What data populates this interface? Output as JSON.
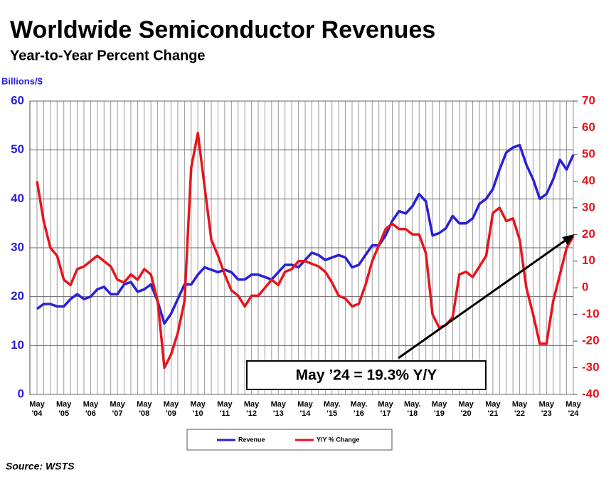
{
  "chart_data": {
    "type": "line",
    "title": "Worldwide Semiconductor Revenues",
    "subtitle": "Year-to-Year Percent Change",
    "y_label": "Billions/$",
    "annotation": "May ’24 = 19.3% Y/Y",
    "source": "Source: WSTS",
    "categories": [
      "May '04",
      null,
      null,
      null,
      "May '05",
      null,
      null,
      null,
      "May '06",
      null,
      null,
      null,
      "May '07",
      null,
      null,
      null,
      "May '08",
      null,
      null,
      null,
      "May '09",
      null,
      null,
      null,
      "May '10",
      null,
      null,
      null,
      "May '11",
      null,
      null,
      null,
      "May '12",
      null,
      null,
      null,
      "May '13",
      null,
      null,
      null,
      "May '14",
      null,
      null,
      null,
      "May. '15",
      null,
      null,
      null,
      "May. '16",
      null,
      null,
      null,
      "May '17",
      null,
      null,
      null,
      "May. '18",
      null,
      null,
      null,
      "May '19",
      null,
      null,
      null,
      "May '20",
      null,
      null,
      null,
      "May '21",
      null,
      null,
      null,
      "May '22",
      null,
      null,
      null,
      "May '23",
      null,
      null,
      null,
      "May '24"
    ],
    "series": [
      {
        "name": "Revenue",
        "color": "#2a1fd8",
        "axis": "y",
        "values": [
          17.5,
          18.5,
          18.5,
          18,
          18,
          19.5,
          20.5,
          19.5,
          20,
          21.5,
          22,
          20.5,
          20.5,
          22.5,
          23,
          21,
          21.5,
          22.5,
          19,
          14.5,
          16.5,
          19.5,
          22.5,
          22.5,
          24.5,
          26,
          25.5,
          25,
          25.5,
          25,
          23.5,
          23.5,
          24.5,
          24.5,
          24,
          23.5,
          25,
          26.5,
          26.5,
          26,
          27.5,
          29,
          28.5,
          27.5,
          28,
          28.5,
          28,
          26,
          26.5,
          28.5,
          30.5,
          30.5,
          32.5,
          35.5,
          37.5,
          37,
          38.5,
          41,
          39.5,
          32.5,
          33,
          34,
          36.5,
          35,
          35,
          36,
          39,
          40,
          42,
          46,
          49.5,
          50.5,
          51,
          47,
          44,
          40,
          41,
          44,
          48,
          46,
          49
        ]
      },
      {
        "name": "Y/Y % Change",
        "color": "#e8141c",
        "axis": "y2",
        "values": [
          40,
          25,
          15,
          12,
          3,
          1,
          7,
          8,
          10,
          12,
          10,
          8,
          3,
          2,
          5,
          3,
          7,
          5,
          -5,
          -30,
          -25,
          -17,
          -5,
          45,
          58,
          38,
          18,
          12,
          5,
          -1,
          -3,
          -7,
          -3,
          -3,
          0,
          3,
          1,
          6,
          7,
          10,
          10,
          9,
          8,
          6,
          2,
          -3,
          -4,
          -7,
          -6,
          1,
          10,
          16,
          22,
          24,
          22,
          22,
          20,
          20,
          13,
          -10,
          -15,
          -14,
          -11,
          5,
          6,
          4,
          8,
          12,
          28,
          30,
          25,
          26,
          18,
          0,
          -10,
          -21,
          -21,
          -5,
          5,
          15,
          19.3
        ]
      }
    ],
    "ylim": [
      0,
      60
    ],
    "yticks": [
      0,
      10,
      20,
      30,
      40,
      50,
      60
    ],
    "y2lim": [
      -40,
      70
    ],
    "y2ticks": [
      -40,
      -30,
      -20,
      -10,
      0,
      10,
      20,
      30,
      40,
      50,
      60,
      70
    ],
    "grid": true
  }
}
